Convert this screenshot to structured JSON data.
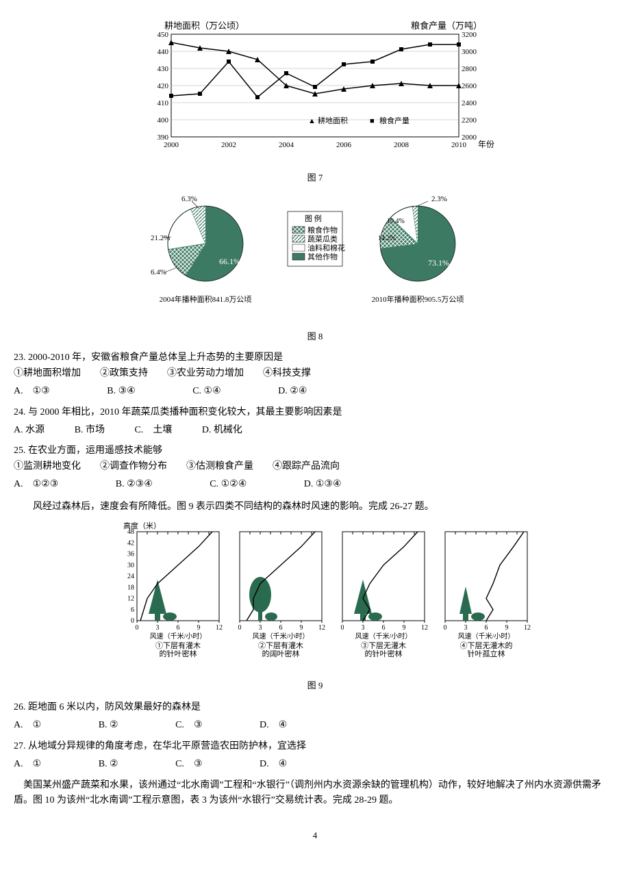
{
  "fig7": {
    "type": "dual-axis-line",
    "caption": "图 7",
    "left_axis": {
      "title": "耕地面积（万公顷）",
      "min": 390,
      "max": 450,
      "ticks": [
        390,
        400,
        410,
        420,
        430,
        440,
        450
      ],
      "color": "#000",
      "fontsize": 12
    },
    "right_axis": {
      "title": "粮食产量（万吨）",
      "min": 2000,
      "max": 3200,
      "ticks": [
        2000,
        2200,
        2400,
        2600,
        2800,
        3000,
        3200
      ],
      "color": "#000",
      "fontsize": 12
    },
    "x_axis": {
      "title": "年份",
      "ticks": [
        2000,
        2002,
        2004,
        2006,
        2008,
        2010
      ],
      "fontsize": 12
    },
    "series": [
      {
        "name": "耕地面积",
        "marker": "triangle",
        "color": "#000",
        "fill": "#000",
        "values_y": [
          445,
          442,
          440,
          435,
          420,
          415,
          418,
          420,
          421,
          420,
          420
        ]
      },
      {
        "name": "粮食产量",
        "marker": "square",
        "color": "#000",
        "fill": "#000",
        "values_y": [
          2480,
          2500,
          2880,
          2460,
          2740,
          2580,
          2850,
          2880,
          3020,
          3080,
          3080
        ]
      }
    ],
    "legend": {
      "items": [
        "耕地面积",
        "粮食产量"
      ],
      "markers": [
        "▲",
        "■"
      ]
    },
    "background": "#ffffff",
    "grid_color": "#888888"
  },
  "fig8": {
    "type": "pie-pair",
    "caption": "图 8",
    "legend_title": "图 例",
    "legend_items": [
      "粮食作物",
      "蔬菜瓜类",
      "油料和棉花",
      "其他作物"
    ],
    "legend_patterns": [
      "hatch",
      "diagonal",
      "blank",
      "solid"
    ],
    "pie_left": {
      "sub_caption": "2004年播种面积841.8万公顷",
      "slices": [
        {
          "label": "66.1%",
          "value": 66.1,
          "pattern": "solid",
          "color": "#3d7a63"
        },
        {
          "label": "6.4%",
          "value": 6.4,
          "pattern": "hatch",
          "color": "#3d7a63"
        },
        {
          "label": "21.2%",
          "value": 21.2,
          "pattern": "blank",
          "color": "#ffffff"
        },
        {
          "label": "6.3%",
          "value": 6.3,
          "pattern": "diagonal",
          "color": "#3d7a63"
        }
      ]
    },
    "pie_right": {
      "sub_caption": "2010年播种面积905.5万公顷",
      "slices": [
        {
          "label": "73.1%",
          "value": 73.1,
          "pattern": "solid",
          "color": "#3d7a63"
        },
        {
          "label": "14.2%",
          "value": 14.2,
          "pattern": "hatch",
          "color": "#3d7a63"
        },
        {
          "label": "10.4%",
          "value": 10.4,
          "pattern": "blank",
          "color": "#ffffff"
        },
        {
          "label": "2.3%",
          "value": 2.3,
          "pattern": "diagonal",
          "color": "#3d7a63"
        }
      ]
    },
    "pie_color": "#3d7a63"
  },
  "q23": {
    "text": "23. 2000-2010 年，安徽省粮食产量总体呈上升态势的主要原因是",
    "subs": "①耕地面积增加　　②政策支持　　③农业劳动力增加　　④科技支撑",
    "opts": {
      "A": "①③",
      "B": "③④",
      "C": "①④",
      "D": "②④"
    }
  },
  "q24": {
    "text": "24. 与 2000 年相比，2010 年蔬菜瓜类播种面积变化较大，其最主要影响因素是",
    "opts": {
      "A": "水源",
      "B": "市场",
      "C": "土壤",
      "D": "机械化"
    }
  },
  "q25": {
    "text": "25. 在农业方面，运用遥感技术能够",
    "subs": "①监测耕地变化　　②调查作物分布　　③估测粮食产量　　④跟踪产品流向",
    "opts": {
      "A": "①②③",
      "B": "②③④",
      "C": "①②④",
      "D": "①③④"
    }
  },
  "passage2": "风经过森林后，速度会有所降低。图 9 表示四类不同结构的森林时风速的影响。完成 26-27 题。",
  "fig9": {
    "type": "small-multiples",
    "caption": "图 9",
    "y_axis": {
      "title": "高度（米）",
      "min": 0,
      "max": 48,
      "ticks": [
        0,
        6,
        12,
        18,
        24,
        30,
        36,
        42,
        48
      ],
      "fontsize": 11
    },
    "x_axis": {
      "title": "风速（千米/小时）",
      "min": 0,
      "max": 12,
      "ticks": [
        0,
        3,
        6,
        9,
        12
      ],
      "fontsize": 11
    },
    "panels": [
      {
        "id": "①",
        "label": "①下层有灌木\n的针叶密林",
        "curve": [
          [
            0.5,
            0
          ],
          [
            1,
            6
          ],
          [
            1.5,
            12
          ],
          [
            3,
            20
          ],
          [
            6,
            30
          ],
          [
            9,
            40
          ],
          [
            11,
            48
          ]
        ],
        "tree": "conifer-dense-shrub"
      },
      {
        "id": "②",
        "label": "②下层有灌木\n的阔叶密林",
        "curve": [
          [
            1,
            0
          ],
          [
            2,
            6
          ],
          [
            2,
            12
          ],
          [
            3,
            20
          ],
          [
            6,
            30
          ],
          [
            9,
            40
          ],
          [
            11,
            48
          ]
        ],
        "tree": "broadleaf-dense-shrub"
      },
      {
        "id": "③",
        "label": "③下层无灌木\n的针叶密林",
        "curve": [
          [
            3,
            0
          ],
          [
            4,
            6
          ],
          [
            3,
            12
          ],
          [
            4,
            20
          ],
          [
            6,
            30
          ],
          [
            9,
            40
          ],
          [
            11,
            48
          ]
        ],
        "tree": "conifer-dense-noshrub"
      },
      {
        "id": "④",
        "label": "④下层无灌木的\n针叶孤立林",
        "curve": [
          [
            6,
            0
          ],
          [
            7,
            6
          ],
          [
            6,
            12
          ],
          [
            7,
            20
          ],
          [
            8,
            30
          ],
          [
            10,
            40
          ],
          [
            11.5,
            48
          ]
        ],
        "tree": "conifer-sparse-noshrub"
      }
    ],
    "tree_color": "#2a6b4f",
    "line_color": "#000000"
  },
  "q26": {
    "text": "26. 距地面 6 米以内，防风效果最好的森林是",
    "opts": {
      "A": "①",
      "B": "②",
      "C": "③",
      "D": "④"
    }
  },
  "q27": {
    "text": "27. 从地域分异规律的角度考虑，在华北平原营造农田防护林，宜选择",
    "opts": {
      "A": "①",
      "B": "②",
      "C": "③",
      "D": "④"
    }
  },
  "passage3": "美国某州盛产蔬菜和水果，该州通过“北水南调”工程和“水银行”（调剂州内水资源余缺的管理机构）动作，较好地解决了州内水资源供需矛盾。图 10 为该州“北水南调”工程示意图，表 3 为该州“水银行”交易统计表。完成 28-29 题。",
  "page_number": "4"
}
